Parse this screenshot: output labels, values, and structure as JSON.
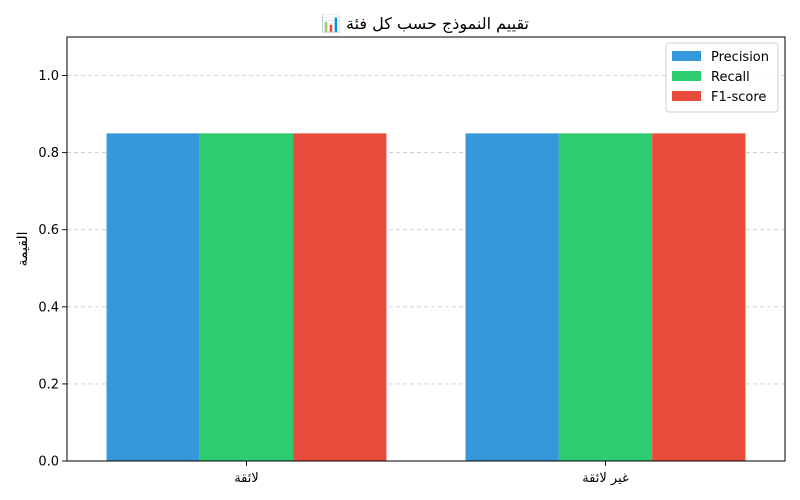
{
  "chart_data": {
    "type": "bar",
    "title": "📊 تقييم النموذج حسب كل فئة",
    "xlabel": "",
    "ylabel": "القيمة",
    "categories": [
      "لائقة",
      "غير لائقة"
    ],
    "series": [
      {
        "name": "Precision",
        "values": [
          0.85,
          0.85
        ],
        "color": "#3498db"
      },
      {
        "name": "Recall",
        "values": [
          0.85,
          0.85
        ],
        "color": "#2ecc71"
      },
      {
        "name": "F1-score",
        "values": [
          0.85,
          0.85
        ],
        "color": "#e74c3c"
      }
    ],
    "ylim": [
      0,
      1.1
    ],
    "yticks": [
      "0.0",
      "0.2",
      "0.4",
      "0.6",
      "0.8",
      "1.0"
    ],
    "grid": "y-dashed",
    "legend_position": "top-right"
  }
}
